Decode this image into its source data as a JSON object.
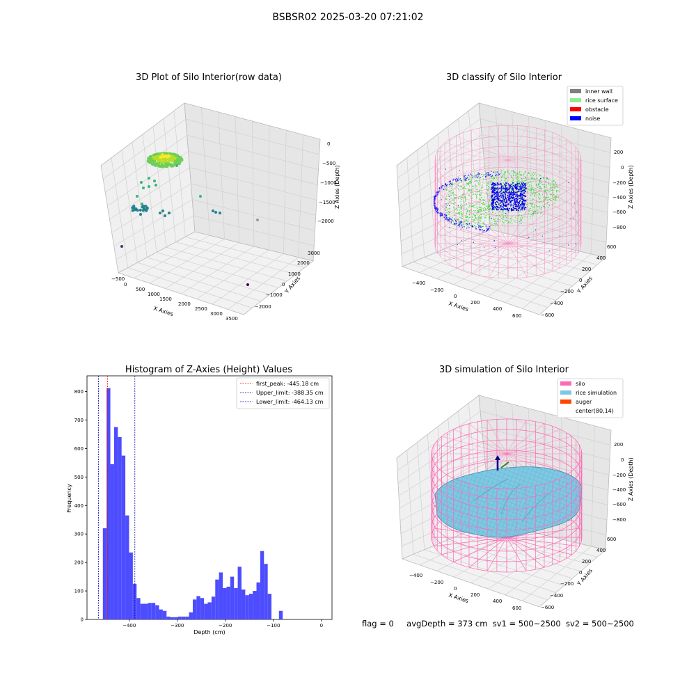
{
  "figure": {
    "title": "BSBSR02 2025-03-20 07:21:02",
    "footer": {
      "flag": "flag = 0",
      "avg_depth": "avgDepth = 373 cm",
      "sv1": "sv1 = 500~2500",
      "sv2": "sv2 = 500~2500"
    }
  },
  "chart_data": [
    {
      "type": "scatter",
      "projection": "3d",
      "title": "3D Plot of Silo Interior(row data)",
      "xlabel": "X Axies",
      "ylabel": "Y Axies",
      "zlabel": "Z Axies (Depth)",
      "x_ticks": [
        "−500",
        "0",
        "500",
        "1000",
        "1500",
        "2000",
        "2500",
        "3000",
        "3500"
      ],
      "y_ticks": [
        "−2000",
        "−1000",
        "0",
        "1000",
        "2000",
        "3000"
      ],
      "z_ticks": [
        "0",
        "−500",
        "−1000",
        "−1500",
        "−2000"
      ],
      "colormap": "viridis",
      "grid": true
    },
    {
      "type": "scatter",
      "projection": "3d",
      "title": "3D classify of Silo Interior",
      "xlabel": "X Axies",
      "ylabel": "Y Axies",
      "zlabel": "Z Axies (Depth)",
      "x_ticks": [
        "−400",
        "−200",
        "0",
        "200",
        "400",
        "600"
      ],
      "y_ticks": [
        "−600",
        "−400",
        "−200",
        "0",
        "200",
        "400",
        "600"
      ],
      "z_ticks": [
        "200",
        "0",
        "−200",
        "−400",
        "−600",
        "−800"
      ],
      "legend_position": "top-right",
      "legend": [
        {
          "label": "inner wall",
          "color": "#808080"
        },
        {
          "label": "rice surface",
          "color": "#90ee90"
        },
        {
          "label": "obstacle",
          "color": "#ff0000"
        },
        {
          "label": "noise",
          "color": "#0000ff"
        }
      ],
      "grid": true
    },
    {
      "type": "bar",
      "title": "Histogram of Z-Axies (Height) Values",
      "xlabel": "Depth (cm)",
      "ylabel": "Frequency",
      "xlim": [
        -488,
        22
      ],
      "ylim": [
        0,
        855
      ],
      "x_ticks": [
        -400,
        -300,
        -200,
        -100,
        0
      ],
      "y_ticks": [
        0,
        100,
        200,
        300,
        400,
        500,
        600,
        700,
        800
      ],
      "bar_color": "#4d4dff",
      "bins": {
        "start": -455,
        "width": 7.8,
        "values": [
          320,
          812,
          545,
          675,
          640,
          575,
          365,
          235,
          125,
          75,
          55,
          55,
          58,
          58,
          50,
          35,
          30,
          10,
          8,
          8,
          10,
          10,
          10,
          25,
          70,
          82,
          75,
          55,
          60,
          80,
          140,
          165,
          110,
          115,
          150,
          110,
          185,
          105,
          85,
          90,
          100,
          130,
          240,
          195,
          90,
          0,
          0,
          30
        ]
      },
      "reference_lines": [
        {
          "label": "first_peak: -445.18 cm",
          "value": -445.18,
          "color": "#ff0000"
        },
        {
          "label": "Upper_limit: -388.35 cm",
          "value": -388.35,
          "color": "#0000aa"
        },
        {
          "label": "Lower_limit: -464.13 cm",
          "value": -464.13,
          "color": "#0000aa"
        }
      ],
      "legend_position": "top-right",
      "grid": false
    },
    {
      "type": "area",
      "projection": "3d",
      "title": "3D simulation of Silo Interior",
      "xlabel": "X Axies",
      "ylabel": "Y Axies",
      "zlabel": "Z Axies (Depth)",
      "x_ticks": [
        "−400",
        "−200",
        "0",
        "200",
        "400",
        "600"
      ],
      "y_ticks": [
        "−600",
        "−400",
        "−200",
        "0",
        "200",
        "400",
        "600"
      ],
      "z_ticks": [
        "200",
        "0",
        "−200",
        "−400",
        "−600",
        "−800"
      ],
      "legend_position": "top-right",
      "legend": [
        {
          "label": "silo",
          "color": "#ff69b4"
        },
        {
          "label": "rice simulation",
          "color": "#7ec8e3"
        },
        {
          "label": "auger",
          "color": "#ff4500"
        },
        {
          "label": "center(80,14)",
          "color": "#ffffff"
        }
      ],
      "grid": true
    }
  ]
}
